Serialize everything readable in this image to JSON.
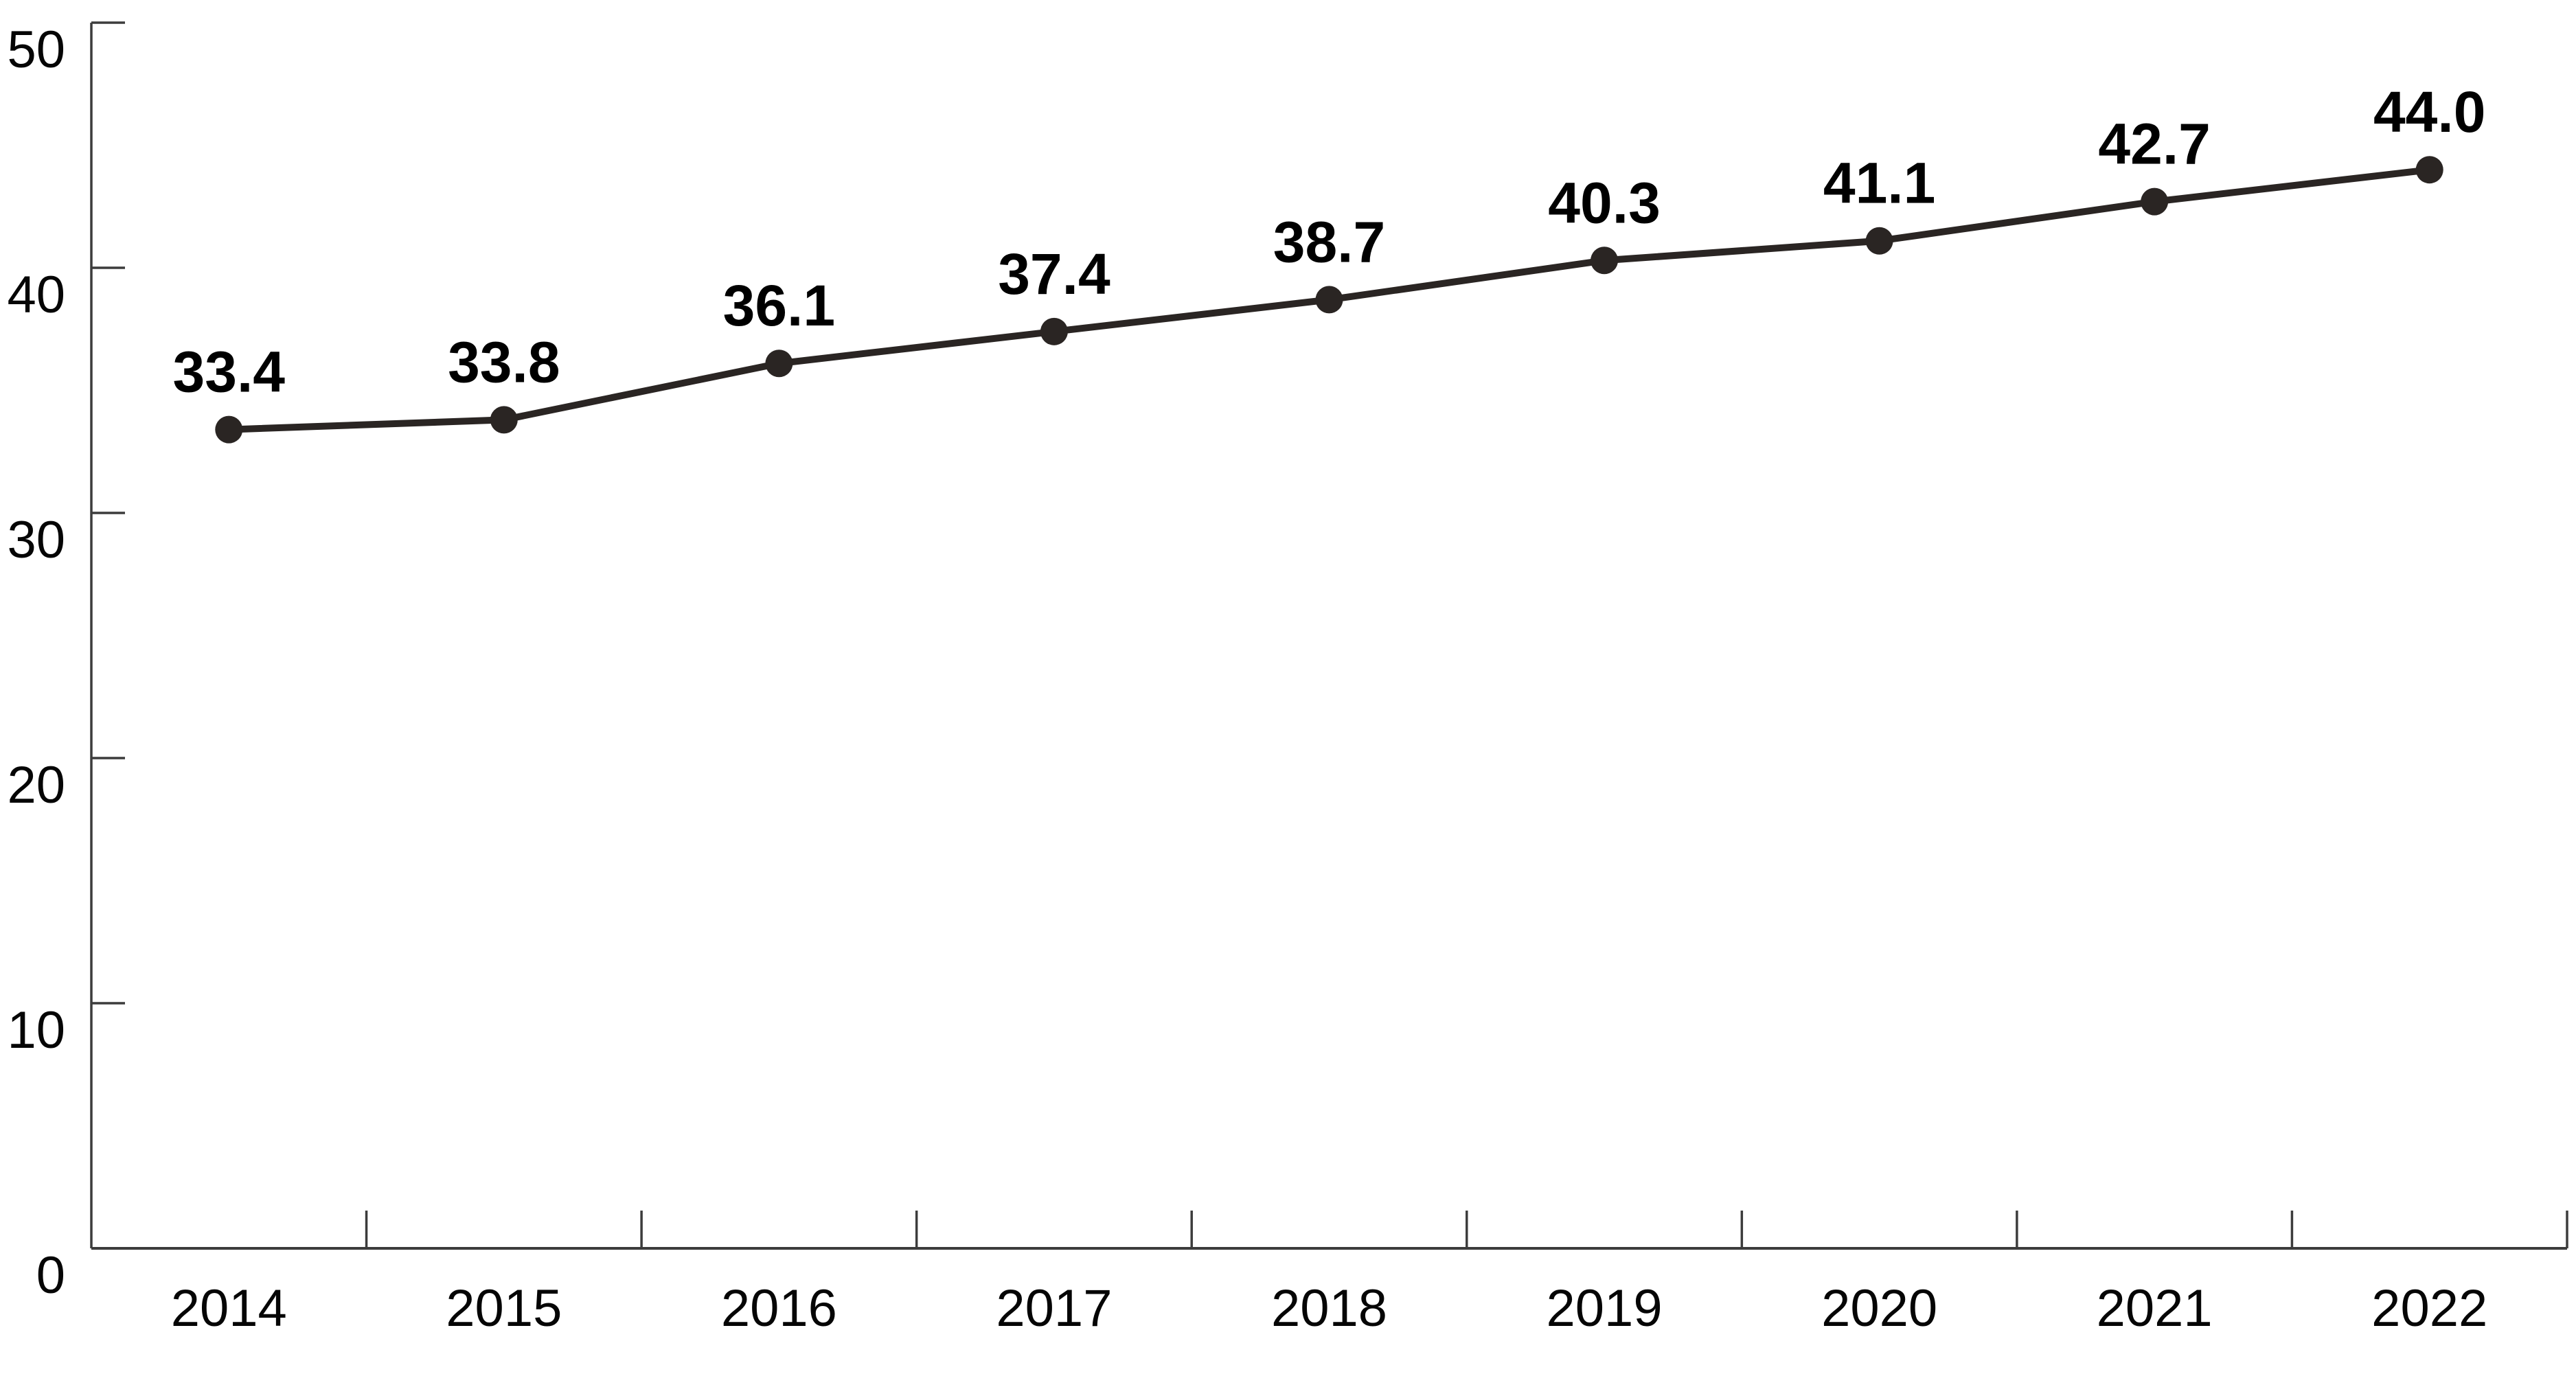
{
  "chart_data": {
    "type": "line",
    "title": "",
    "xlabel": "",
    "ylabel": "",
    "categories": [
      "2014",
      "2015",
      "2016",
      "2017",
      "2018",
      "2019",
      "2020",
      "2021",
      "2022"
    ],
    "values": [
      33.4,
      33.8,
      36.1,
      37.4,
      38.7,
      40.3,
      41.1,
      42.7,
      44.0
    ],
    "point_labels": [
      "33.4",
      "33.8",
      "36.1",
      "37.4",
      "38.7",
      "40.3",
      "41.1",
      "42.7",
      "44.0"
    ],
    "ylim": [
      0,
      50
    ],
    "yticks": [
      0,
      10,
      20,
      30,
      40,
      50
    ],
    "ytick_labels": [
      "0",
      "10",
      "20",
      "30",
      "40",
      "50"
    ],
    "grid": false,
    "legend": "none",
    "colors": {
      "background": "#ffffff",
      "line": "#2a2523",
      "marker": "#2a2523",
      "axis": "#3c3c3c",
      "tick_label": "#050505",
      "point_label": "#000000"
    }
  }
}
